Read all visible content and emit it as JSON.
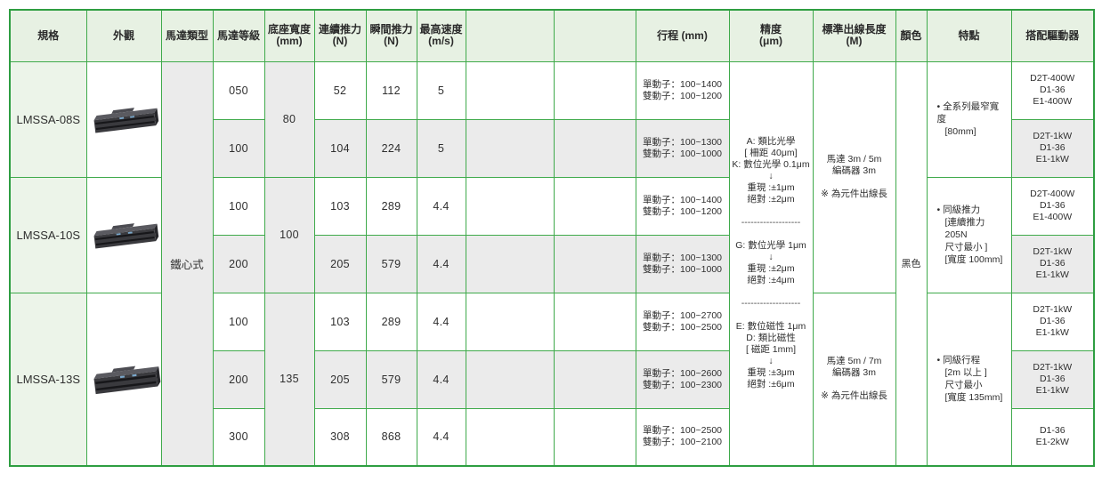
{
  "colors": {
    "border_green": "#3faa4b",
    "outer_border_green": "#2e9e41",
    "header_bg": "#e7f1e3",
    "spec_col_bg": "#ecf4e9",
    "alt_row_gray": "#ebebeb",
    "product_dark": "#3a3a3e"
  },
  "headers": {
    "spec": "規格",
    "appearance": "外觀",
    "motor_type": "馬達類型",
    "motor_grade": "馬達等級",
    "base_width": [
      "底座寬度",
      "(mm)"
    ],
    "cont_force": [
      "連續推力",
      "(N)"
    ],
    "peak_force": [
      "瞬間推力",
      "(N)"
    ],
    "max_speed": [
      "最高速度",
      "(m/s)"
    ],
    "stroke": "行程 (mm)",
    "precision": [
      "精度",
      "(μm)"
    ],
    "cable_length": [
      "標準出線長度",
      "(M)"
    ],
    "color": "顏色",
    "features": "特點",
    "drivers": "搭配驅動器"
  },
  "merged": {
    "motor_type": "鐵心式",
    "color": "黑色",
    "precision_lines": [
      "A: 類比光學",
      "[ 柵距 40μm]",
      "K: 數位光學 0.1μm",
      "↓",
      "重現 :±1μm",
      "絕對 :±2μm",
      "",
      "-------------------",
      "",
      "G: 數位光學 1μm",
      "↓",
      "重現 :±2μm",
      "絕對 :±4μm",
      "",
      "-------------------",
      "",
      "E: 數位磁性 1μm",
      "D: 類比磁性",
      "[ 磁距 1mm]",
      "↓",
      "重現 :±3μm",
      "絕對 :±6μm"
    ],
    "cable_top": [
      "馬達 3m / 5m",
      "編碼器 3m",
      "",
      "※ 為元件出線長"
    ],
    "cable_bottom": [
      "馬達 5m / 7m",
      "編碼器 3m",
      "",
      "※ 為元件出線長"
    ]
  },
  "groups": [
    {
      "spec": "LMSSA-08S",
      "base_width": "80",
      "features": [
        "• 全系列最窄寬度",
        "[80mm]"
      ]
    },
    {
      "spec": "LMSSA-10S",
      "base_width": "100",
      "features": [
        "• 同級推力",
        "[連續推力 205N",
        "尺寸最小 ]",
        "[寬度 100mm]"
      ]
    },
    {
      "spec": "LMSSA-13S",
      "base_width": "135",
      "features": [
        "• 同級行程",
        "[2m 以上 ]",
        "尺寸最小",
        "[寬度 135mm]"
      ]
    }
  ],
  "rows": [
    {
      "grade": "050",
      "cont": "52",
      "inst": "112",
      "speed": "5",
      "stroke": [
        "單動子：100~1400",
        "雙動子：100~1200"
      ],
      "drivers": [
        "D2T-400W",
        "D1-36",
        "E1-400W"
      ]
    },
    {
      "grade": "100",
      "cont": "104",
      "inst": "224",
      "speed": "5",
      "stroke": [
        "單動子：100~1300",
        "雙動子：100~1000"
      ],
      "drivers": [
        "D2T-1kW",
        "D1-36",
        "E1-1kW"
      ]
    },
    {
      "grade": "100",
      "cont": "103",
      "inst": "289",
      "speed": "4.4",
      "stroke": [
        "單動子：100~1400",
        "雙動子：100~1200"
      ],
      "drivers": [
        "D2T-400W",
        "D1-36",
        "E1-400W"
      ]
    },
    {
      "grade": "200",
      "cont": "205",
      "inst": "579",
      "speed": "4.4",
      "stroke": [
        "單動子：100~1300",
        "雙動子：100~1000"
      ],
      "drivers": [
        "D2T-1kW",
        "D1-36",
        "E1-1kW"
      ]
    },
    {
      "grade": "100",
      "cont": "103",
      "inst": "289",
      "speed": "4.4",
      "stroke": [
        "單動子：100~2700",
        "雙動子：100~2500"
      ],
      "drivers": [
        "D2T-1kW",
        "D1-36",
        "E1-1kW"
      ]
    },
    {
      "grade": "200",
      "cont": "205",
      "inst": "579",
      "speed": "4.4",
      "stroke": [
        "單動子：100~2600",
        "雙動子：100~2300"
      ],
      "drivers": [
        "D2T-1kW",
        "D1-36",
        "E1-1kW"
      ]
    },
    {
      "grade": "300",
      "cont": "308",
      "inst": "868",
      "speed": "4.4",
      "stroke": [
        "單動子：100~2500",
        "雙動子：100~2100"
      ],
      "drivers": [
        "D1-36",
        "E1-2kW"
      ]
    }
  ]
}
